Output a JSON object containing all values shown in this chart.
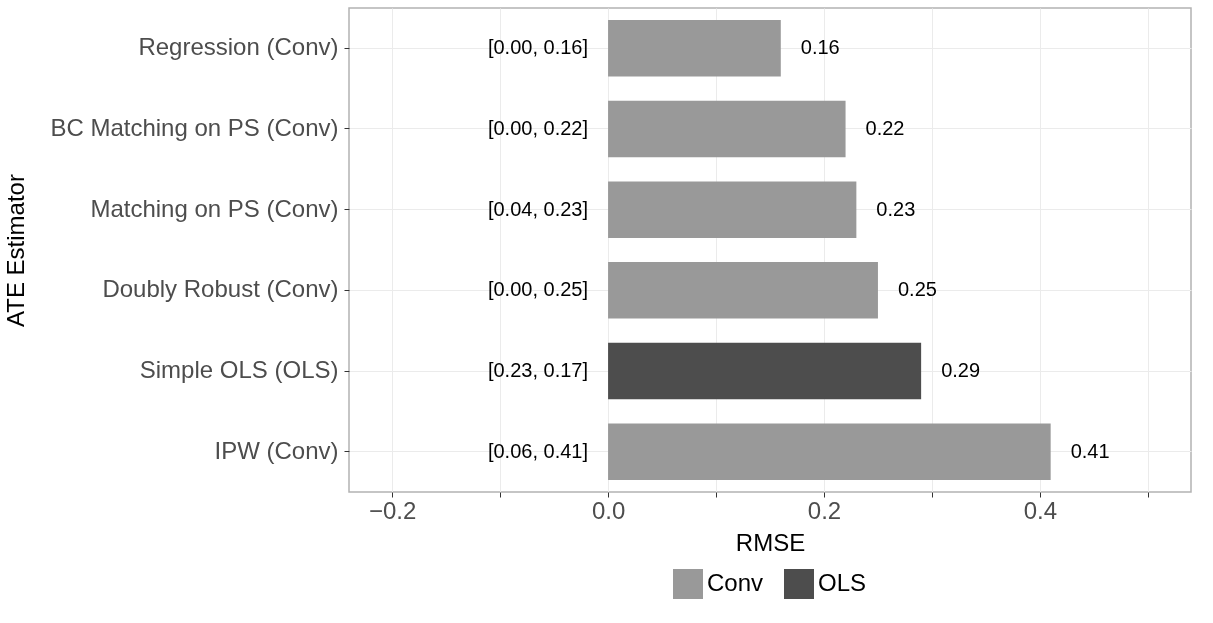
{
  "chart_data": {
    "type": "bar",
    "orientation": "horizontal",
    "xlabel": "RMSE",
    "ylabel": "ATE Estimator",
    "categories": [
      "Regression (Conv)",
      "BC Matching on PS (Conv)",
      "Matching on PS (Conv)",
      "Doubly Robust (Conv)",
      "Simple OLS (OLS)",
      "IPW (Conv)"
    ],
    "series": [
      {
        "name": "Conv",
        "color": "#999999",
        "values": [
          0.16,
          0.22,
          0.23,
          0.25,
          null,
          0.41
        ]
      },
      {
        "name": "OLS",
        "color": "#4d4d4d",
        "values": [
          null,
          null,
          null,
          null,
          0.29,
          null
        ]
      }
    ],
    "xlim": [
      -0.24,
      0.54
    ],
    "xticks": [
      -0.2,
      {
        "value": -0.1,
        "label": null
      },
      {
        "value": 0,
        "label": "0.0"
      },
      {
        "value": 0.1,
        "label": null
      },
      0.2,
      {
        "value": 0.3,
        "label": null
      },
      0.4,
      {
        "value": 0.5,
        "label": null
      }
    ],
    "data_labels": true,
    "grid": true,
    "legend": "bottom",
    "annotations": [
      "[0.00, 0.16]",
      "[0.00, 0.22]",
      "[0.04, 0.23]",
      "[0.00, 0.25]",
      "[0.23, 0.17]",
      "[0.06, 0.41]"
    ]
  }
}
